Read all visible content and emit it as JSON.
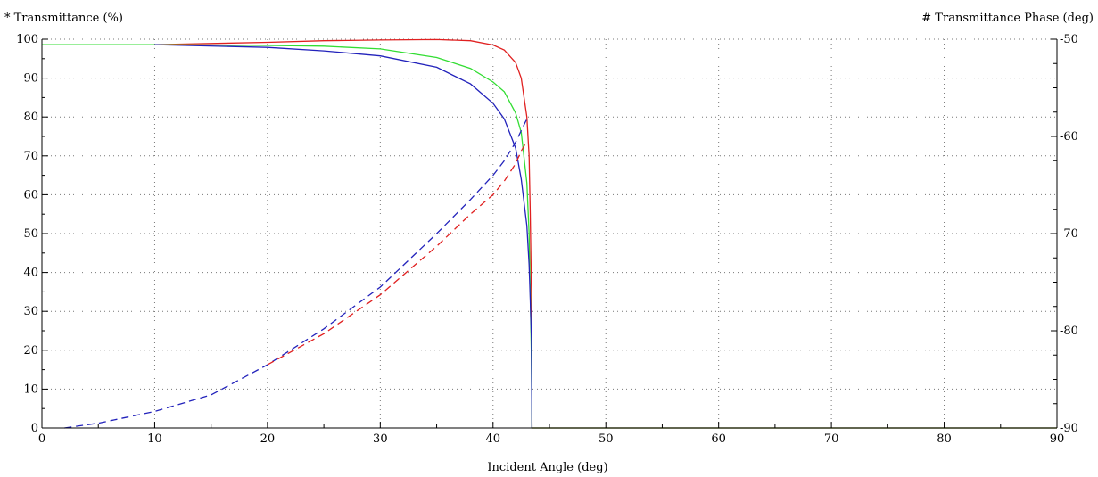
{
  "chart_data": {
    "type": "line",
    "xlabel": "Incident Angle (deg)",
    "ylabel": "* Transmittance (%)",
    "y2label": "# Transmittance Phase (deg)",
    "xlim": [
      0,
      90
    ],
    "ylim": [
      0,
      100
    ],
    "y2lim": [
      -90,
      -50
    ],
    "x_ticks": [
      0,
      10,
      20,
      30,
      40,
      50,
      60,
      70,
      80,
      90
    ],
    "y_ticks": [
      0,
      10,
      20,
      30,
      40,
      50,
      60,
      70,
      80,
      90,
      100
    ],
    "y2_ticks": [
      -90,
      -80,
      -70,
      -60,
      -50
    ],
    "grid": true,
    "series": [
      {
        "color": "#e02020",
        "style": "solid",
        "axis": "left",
        "points": [
          [
            10,
            98.6
          ],
          [
            20,
            99.2
          ],
          [
            25,
            99.6
          ],
          [
            30,
            99.8
          ],
          [
            35,
            99.9
          ],
          [
            38,
            99.6
          ],
          [
            40,
            98.5
          ],
          [
            41,
            97.2
          ],
          [
            42,
            94
          ],
          [
            42.5,
            90
          ],
          [
            43,
            80
          ],
          [
            43.2,
            70
          ],
          [
            43.3,
            55
          ],
          [
            43.4,
            35
          ],
          [
            43.45,
            0
          ],
          [
            90,
            0
          ]
        ]
      },
      {
        "color": "#33dd33",
        "style": "solid",
        "axis": "left",
        "points": [
          [
            0,
            98.6
          ],
          [
            10,
            98.6
          ],
          [
            20,
            98.4
          ],
          [
            25,
            98.2
          ],
          [
            30,
            97.5
          ],
          [
            35,
            95.3
          ],
          [
            38,
            92.5
          ],
          [
            40,
            89
          ],
          [
            41,
            86.5
          ],
          [
            42,
            81
          ],
          [
            42.5,
            76
          ],
          [
            43,
            63
          ],
          [
            43.2,
            50
          ],
          [
            43.3,
            35
          ],
          [
            43.4,
            18
          ],
          [
            43.45,
            0
          ],
          [
            90,
            0
          ]
        ]
      },
      {
        "color": "#2222bb",
        "style": "solid",
        "axis": "left",
        "points": [
          [
            10,
            98.6
          ],
          [
            20,
            97.9
          ],
          [
            25,
            97
          ],
          [
            30,
            95.7
          ],
          [
            35,
            92.8
          ],
          [
            38,
            88.5
          ],
          [
            40,
            83.5
          ],
          [
            41,
            79.5
          ],
          [
            42,
            72
          ],
          [
            42.5,
            64
          ],
          [
            43,
            52
          ],
          [
            43.2,
            42
          ],
          [
            43.3,
            33
          ],
          [
            43.4,
            23
          ],
          [
            43.45,
            0
          ]
        ]
      },
      {
        "color": "#2222bb",
        "style": "dashed",
        "axis": "right",
        "points": [
          [
            2,
            -90
          ],
          [
            5,
            -89.5
          ],
          [
            10,
            -88.3
          ],
          [
            15,
            -86.6
          ],
          [
            20,
            -83.5
          ],
          [
            25,
            -79.8
          ],
          [
            30,
            -75.5
          ],
          [
            35,
            -70
          ],
          [
            38,
            -66.5
          ],
          [
            40,
            -64
          ],
          [
            41,
            -62.5
          ],
          [
            42,
            -60.6
          ],
          [
            42.5,
            -59.4
          ],
          [
            43,
            -58.2
          ]
        ]
      },
      {
        "color": "#e02020",
        "style": "dashed",
        "axis": "right",
        "points": [
          [
            20,
            -83.5
          ],
          [
            25,
            -80.3
          ],
          [
            30,
            -76.3
          ],
          [
            35,
            -71.3
          ],
          [
            38,
            -68
          ],
          [
            40,
            -66
          ],
          [
            41,
            -64.6
          ],
          [
            42,
            -62.8
          ],
          [
            42.5,
            -61.5
          ],
          [
            43,
            -60.5
          ]
        ]
      }
    ]
  }
}
